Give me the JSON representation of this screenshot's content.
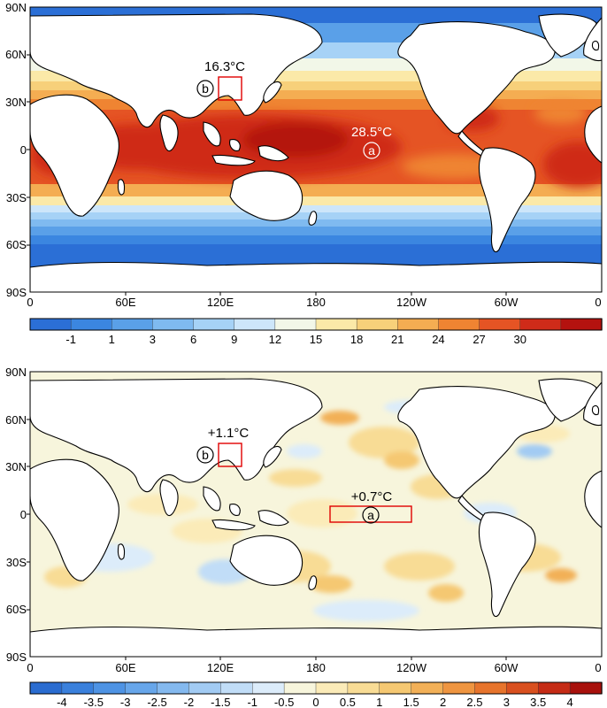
{
  "maps": [
    {
      "id": "sst-climatology",
      "lat_ticks": [
        "90N",
        "60N",
        "30N",
        "0",
        "30S",
        "60S",
        "90S"
      ],
      "lon_ticks": [
        "0",
        "60E",
        "120E",
        "180",
        "120W",
        "60W",
        "0"
      ],
      "colorbar": {
        "labels": [
          "-1",
          "1",
          "3",
          "6",
          "9",
          "12",
          "15",
          "18",
          "21",
          "24",
          "27",
          "30"
        ],
        "colors": [
          "#2b6fd6",
          "#3b86e0",
          "#5aa0e8",
          "#7fbaf0",
          "#a6d2f6",
          "#cde6fa",
          "#f2f7e8",
          "#fbe9a8",
          "#f7d07a",
          "#f4ad52",
          "#ef8432",
          "#e55424",
          "#cf2b19",
          "#b4120f"
        ]
      },
      "annotations": [
        {
          "letter": "a",
          "value": "28.5°C",
          "color": "#ffffff"
        },
        {
          "letter": "b",
          "value": "16.3°C",
          "color": "#000000"
        }
      ]
    },
    {
      "id": "sst-anomaly",
      "lat_ticks": [
        "90N",
        "60N",
        "30N",
        "0",
        "30S",
        "60S",
        "90S"
      ],
      "lon_ticks": [
        "0",
        "60E",
        "120E",
        "180",
        "120W",
        "60W",
        "0"
      ],
      "colorbar": {
        "labels": [
          "-4",
          "-3.5",
          "-3",
          "-2.5",
          "-2",
          "-1.5",
          "-1",
          "-0.5",
          "0",
          "0.5",
          "1",
          "1.5",
          "2",
          "2.5",
          "3",
          "3.5",
          "4"
        ],
        "colors": [
          "#2a6cd0",
          "#3a80dc",
          "#4e93e4",
          "#67a6ea",
          "#84b9ef",
          "#a2cbf3",
          "#c1ddf7",
          "#dcecfa",
          "#f7f5dc",
          "#fbebb8",
          "#f8dc95",
          "#f5c872",
          "#f2b057",
          "#ef9540",
          "#e7742c",
          "#d9501f",
          "#c52b15",
          "#a8110c"
        ]
      },
      "annotations": [
        {
          "letter": "a",
          "value": "+0.7°C",
          "color": "#000000"
        },
        {
          "letter": "b",
          "value": "+1.1°C",
          "color": "#000000"
        }
      ]
    }
  ]
}
